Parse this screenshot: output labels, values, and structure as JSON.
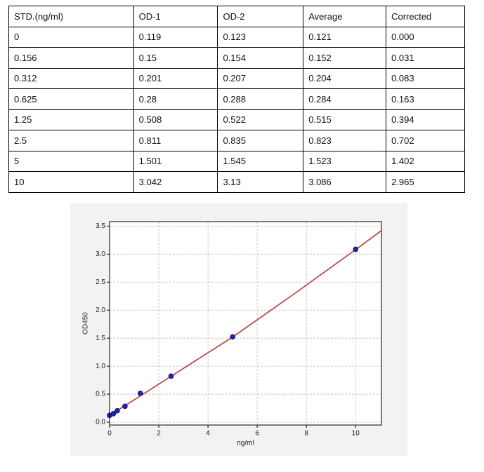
{
  "table": {
    "header": [
      "STD.(ng/ml)",
      "OD-1",
      "OD-2",
      "Average",
      "Corrected"
    ],
    "rows": [
      [
        "0",
        "0.119",
        "0.123",
        "0.121",
        "0.000"
      ],
      [
        "0.156",
        "0.15",
        "0.154",
        "0.152",
        "0.031"
      ],
      [
        "0.312",
        "0.201",
        "0.207",
        "0.204",
        "0.083"
      ],
      [
        "0.625",
        "0.28",
        "0.288",
        "0.284",
        "0.163"
      ],
      [
        "1.25",
        "0.508",
        "0.522",
        "0.515",
        "0.394"
      ],
      [
        "2.5",
        "0.811",
        "0.835",
        "0.823",
        "0.702"
      ],
      [
        "5",
        "1.501",
        "1.545",
        "1.523",
        "1.402"
      ],
      [
        "10",
        "3.042",
        "3.13",
        "3.086",
        "2.965"
      ]
    ]
  },
  "chart_data": {
    "type": "scatter",
    "xlabel": "ng/ml",
    "ylabel": "OD450",
    "xlim": [
      0,
      11.05
    ],
    "ylim": [
      -0.05,
      3.58
    ],
    "xticks": [
      0,
      2,
      4,
      6,
      8,
      10
    ],
    "yticks": [
      {
        "value": 0,
        "label": "0.0"
      },
      0.5,
      {
        "value": 1,
        "label": "1.0"
      },
      1.5,
      {
        "value": 2,
        "label": "2.0"
      },
      2.5,
      {
        "value": 3,
        "label": "3.0"
      },
      3.5
    ],
    "grid": true,
    "series": [
      {
        "color": "#1f1fd0",
        "x": [
          0,
          0.156,
          0.312,
          0.625,
          1.25,
          2.5,
          5,
          10
        ],
        "values": [
          0.121,
          0.152,
          0.204,
          0.284,
          0.515,
          0.823,
          1.523,
          3.086
        ]
      }
    ],
    "fit": {
      "color": "#d62728",
      "x": [
        0,
        1.25,
        2.5,
        5,
        7.5,
        10,
        11.05
      ],
      "values": [
        0.12,
        0.47,
        0.82,
        1.52,
        2.29,
        3.08,
        3.42
      ]
    }
  }
}
